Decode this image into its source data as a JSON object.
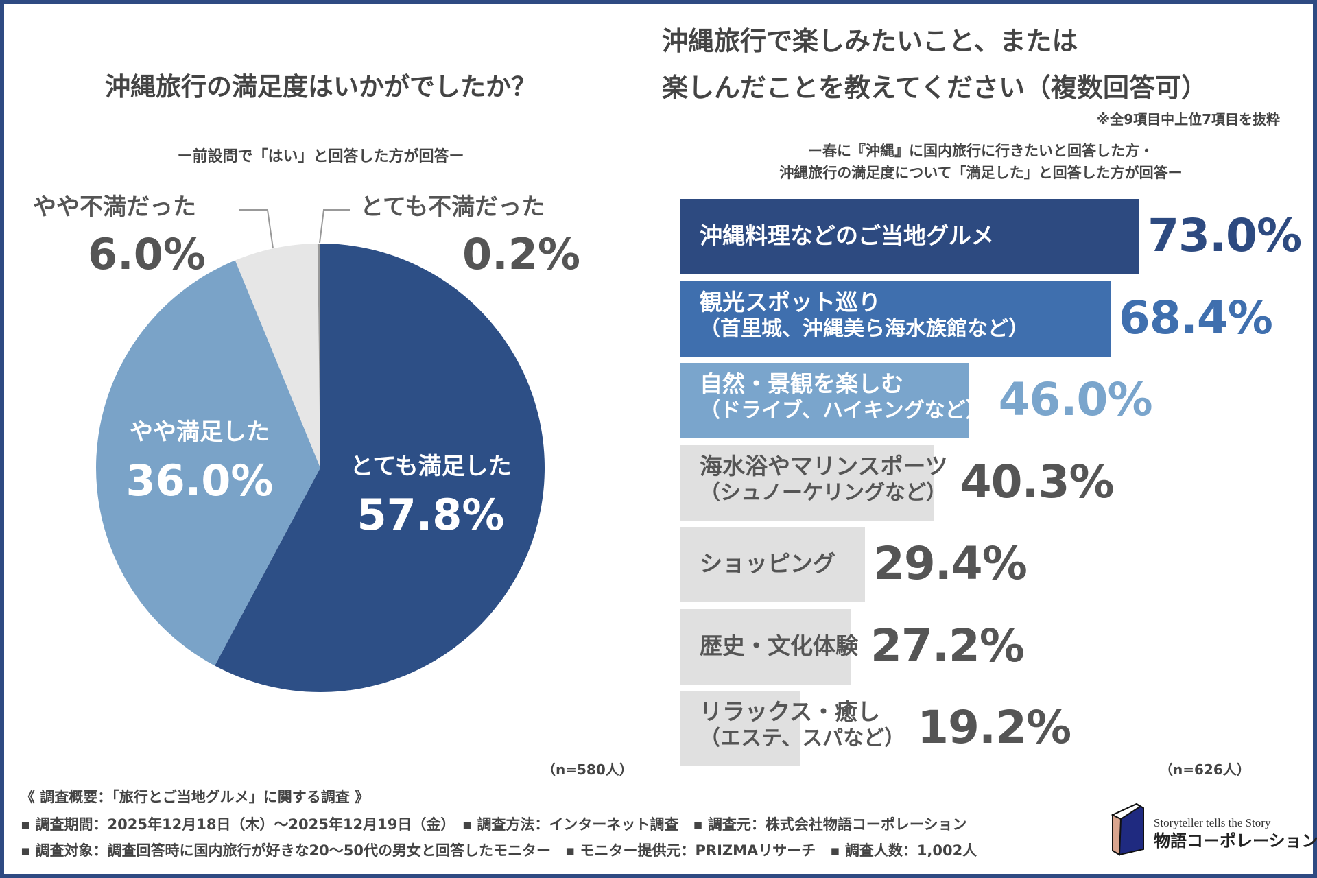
{
  "left": {
    "title": "沖縄旅行の満足度はいかがでしたか？",
    "subtitle": "ー前設問で「はい」と回答した方が回答ー",
    "n": "（n=580人）"
  },
  "right": {
    "title_line1": "沖縄旅行で楽しみたいこと、または",
    "title_line2": "楽しんだことを教えてください（複数回答可）",
    "note": "※全9項目中上位7項目を抜粋",
    "subtitle_line1": "ー春に『沖縄』に国内旅行に行きたいと回答した方・",
    "subtitle_line2": "沖縄旅行の満足度について「満足した」と回答した方が回答ー",
    "n": "（n=626人）"
  },
  "chart_data": [
    {
      "type": "pie",
      "start": "top",
      "direction": "clockwise",
      "slices": [
        {
          "label": "とても満足した",
          "value": 57.8,
          "display": "57.8%",
          "color": "#2d4f86"
        },
        {
          "label": "やや満足した",
          "value": 36.0,
          "display": "36.0%",
          "color": "#7aa3c8"
        },
        {
          "label": "やや不満だった",
          "value": 6.0,
          "display": "6.0%",
          "color": "#e6e6e6"
        },
        {
          "label": "とても不満だった",
          "value": 0.2,
          "display": "0.2%",
          "color": "#9a9a9a"
        }
      ]
    },
    {
      "type": "bar",
      "orientation": "horizontal",
      "categories": [
        {
          "line1": "沖縄料理などのご当地グルメ",
          "line2": ""
        },
        {
          "line1": "観光スポット巡り",
          "line2": "（首里城、沖縄美ら海水族館など）"
        },
        {
          "line1": "自然・景観を楽しむ",
          "line2": "（ドライブ、ハイキングなど）"
        },
        {
          "line1": "海水浴やマリンスポーツ",
          "line2": "（シュノーケリングなど）"
        },
        {
          "line1": "ショッピング",
          "line2": ""
        },
        {
          "line1": "歴史・文化体験",
          "line2": ""
        },
        {
          "line1": "リラックス・癒し",
          "line2": "（エステ、スパなど）"
        }
      ],
      "values": [
        73.0,
        68.4,
        46.0,
        40.3,
        29.4,
        27.2,
        19.2
      ],
      "labels": [
        "73.0%",
        "68.4%",
        "46.0%",
        "40.3%",
        "29.4%",
        "27.2%",
        "19.2%"
      ],
      "bar_colors": [
        "#2d4a80",
        "#3f6fae",
        "#7aa5cc",
        "#e0e0e0",
        "#e0e0e0",
        "#e0e0e0",
        "#e0e0e0"
      ],
      "label_colors": [
        "#2d4a80",
        "#3f6fae",
        "#7aa5cc",
        "#555555",
        "#555555",
        "#555555",
        "#555555"
      ],
      "text_colors": [
        "#ffffff",
        "#ffffff",
        "#ffffff",
        "#555555",
        "#555555",
        "#555555",
        "#555555"
      ]
    }
  ],
  "footer": {
    "heading": "《 調査概要：「旅行とご当地グルメ」に関する調査 》",
    "line1": "▪ 調査期間：2025年12月18日（木）～2025年12月19日（金）　▪ 調査方法：インターネット調査　▪ 調査元：株式会社物語コーポレーション",
    "line2": "▪ 調査対象：調査回答時に国内旅行が好きな20～50代の男女と回答したモニター　▪ モニター提供元：PRIZMAリサーチ　▪ 調査人数：1,002人"
  },
  "logo": {
    "tagline": "Storyteller tells the Story",
    "name": "物語コーポレーション"
  }
}
